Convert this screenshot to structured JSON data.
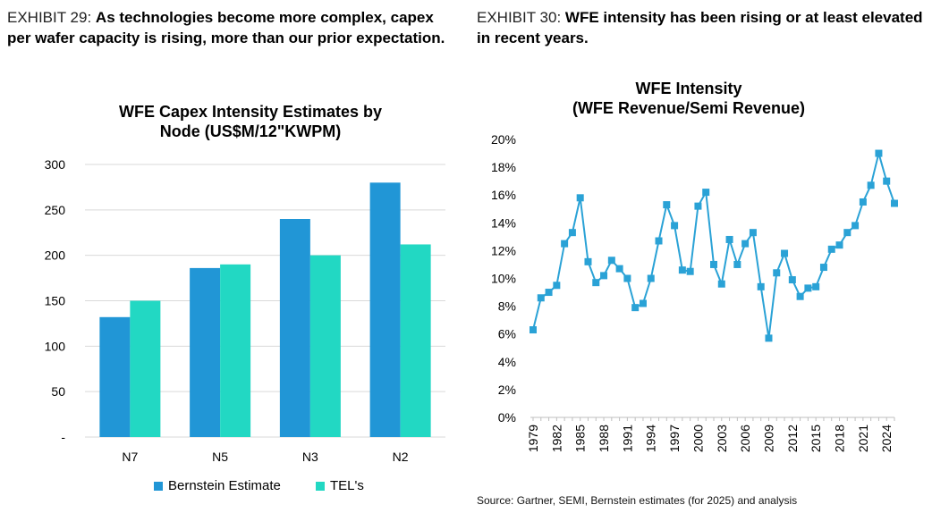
{
  "exhibit29": {
    "number": "EXHIBIT 29:",
    "text": "As technologies become more complex, capex per wafer capacity is rising, more than our prior expectation."
  },
  "exhibit30": {
    "number": "EXHIBIT 30:",
    "text": "WFE intensity has been rising or at least elevated in recent years."
  },
  "source": "Source: Gartner, SEMI, Bernstein estimates (for 2025) and analysis",
  "colors": {
    "bernstein": "#2196d6",
    "tel": "#22d8c3",
    "line": "#2aa2d6",
    "grid": "#d9d9d9"
  },
  "chart_data": [
    {
      "type": "bar",
      "title": "WFE Capex Intensity Estimates by",
      "subtitle": "Node (US$M/12\"KWPM)",
      "categories": [
        "N7",
        "N5",
        "N3",
        "N2"
      ],
      "series": [
        {
          "name": "Bernstein Estimate",
          "values": [
            132,
            186,
            240,
            280
          ]
        },
        {
          "name": "TEL's",
          "values": [
            150,
            190,
            200,
            212
          ]
        }
      ],
      "ylim": [
        0,
        300
      ],
      "yticks": [
        "-",
        "50",
        "100",
        "150",
        "200",
        "250",
        "300"
      ],
      "grid": true,
      "legend": "bottom"
    },
    {
      "type": "line",
      "title": "WFE Intensity",
      "subtitle": "(WFE Revenue/Semi Revenue)",
      "x": [
        1979,
        1980,
        1981,
        1982,
        1983,
        1984,
        1985,
        1986,
        1987,
        1988,
        1989,
        1990,
        1991,
        1992,
        1993,
        1994,
        1995,
        1996,
        1997,
        1998,
        1999,
        2000,
        2001,
        2002,
        2003,
        2004,
        2005,
        2006,
        2007,
        2008,
        2009,
        2010,
        2011,
        2012,
        2013,
        2014,
        2015,
        2016,
        2017,
        2018,
        2019,
        2020,
        2021,
        2022,
        2023,
        2024,
        2025
      ],
      "y": [
        6.3,
        8.6,
        9.0,
        9.5,
        12.5,
        13.3,
        15.8,
        11.2,
        9.7,
        10.2,
        11.3,
        10.7,
        10.0,
        7.9,
        8.2,
        10.0,
        12.7,
        15.3,
        13.8,
        10.6,
        10.5,
        15.2,
        16.2,
        11.0,
        9.6,
        12.8,
        11.0,
        12.5,
        13.3,
        9.4,
        5.7,
        10.4,
        11.8,
        9.9,
        8.7,
        9.3,
        9.4,
        10.8,
        12.1,
        12.4,
        13.3,
        13.8,
        15.5,
        16.7,
        19.0,
        17.0,
        15.4
      ],
      "xticks": [
        "1979",
        "1982",
        "1985",
        "1988",
        "1991",
        "1994",
        "1997",
        "2000",
        "2003",
        "2006",
        "2009",
        "2012",
        "2015",
        "2018",
        "2021",
        "2024"
      ],
      "yticks": [
        "0%",
        "2%",
        "4%",
        "6%",
        "8%",
        "10%",
        "12%",
        "14%",
        "16%",
        "18%",
        "20%"
      ],
      "ylim": [
        0,
        20
      ],
      "grid": false
    }
  ]
}
